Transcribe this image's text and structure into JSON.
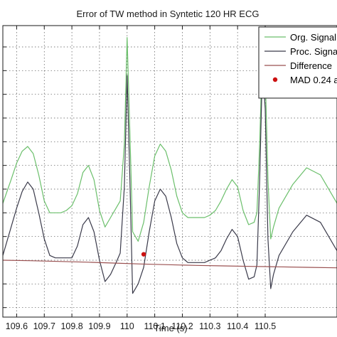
{
  "chart_data": {
    "type": "line",
    "title": "Error of TW method in Syntetic 120 HR ECG",
    "xlabel": "Time (s)",
    "ylabel": "",
    "xlim": [
      109.55,
      110.76
    ],
    "ylim": [
      -0.18,
      1.05
    ],
    "grid": true,
    "x_ticks": [
      109.6,
      109.7,
      109.8,
      109.9,
      110.0,
      110.1,
      110.2,
      110.3,
      110.4,
      110.5
    ],
    "x_tick_labels": [
      "109.6",
      "109.7",
      "109.8",
      "109.9",
      "110",
      "110.1",
      "110.2",
      "110.3",
      "110.4",
      "110.5"
    ],
    "y_ticks": [
      -0.14,
      -0.04,
      0.06,
      0.16,
      0.26,
      0.36,
      0.46,
      0.56,
      0.66,
      0.76,
      0.86,
      0.96
    ],
    "legend_position": "top-right",
    "colors": {
      "org": "#6bbf6b",
      "proc": "#3a3a4a",
      "diff": "#9a5050",
      "mad": "#cc1111"
    },
    "series": [
      {
        "name": "Org. Signal",
        "x": [
          109.55,
          109.58,
          109.6,
          109.62,
          109.64,
          109.66,
          109.68,
          109.7,
          109.72,
          109.74,
          109.76,
          109.78,
          109.8,
          109.82,
          109.84,
          109.86,
          109.88,
          109.9,
          109.92,
          109.94,
          109.96,
          109.975,
          109.99,
          110.0,
          110.01,
          110.02,
          110.04,
          110.06,
          110.08,
          110.1,
          110.12,
          110.14,
          110.16,
          110.18,
          110.2,
          110.22,
          110.24,
          110.26,
          110.28,
          110.3,
          110.32,
          110.34,
          110.36,
          110.38,
          110.4,
          110.42,
          110.44,
          110.46,
          110.47,
          110.48,
          110.49,
          110.5,
          110.51,
          110.52,
          110.53,
          110.55,
          110.6,
          110.65,
          110.7,
          110.76
        ],
        "y": [
          0.3,
          0.4,
          0.47,
          0.52,
          0.54,
          0.51,
          0.42,
          0.31,
          0.26,
          0.26,
          0.26,
          0.27,
          0.29,
          0.34,
          0.43,
          0.46,
          0.4,
          0.27,
          0.2,
          0.24,
          0.28,
          0.31,
          0.55,
          1.0,
          0.6,
          0.18,
          0.14,
          0.22,
          0.37,
          0.5,
          0.55,
          0.52,
          0.44,
          0.33,
          0.26,
          0.24,
          0.24,
          0.24,
          0.24,
          0.25,
          0.27,
          0.31,
          0.36,
          0.4,
          0.37,
          0.27,
          0.21,
          0.22,
          0.26,
          0.55,
          0.96,
          0.85,
          0.4,
          0.15,
          0.2,
          0.28,
          0.38,
          0.45,
          0.42,
          0.3
        ]
      },
      {
        "name": "Proc. Signal",
        "x": [
          109.55,
          109.58,
          109.6,
          109.62,
          109.64,
          109.66,
          109.68,
          109.7,
          109.72,
          109.74,
          109.76,
          109.78,
          109.8,
          109.82,
          109.84,
          109.86,
          109.88,
          109.9,
          109.92,
          109.94,
          109.96,
          109.975,
          109.99,
          110.0,
          110.01,
          110.02,
          110.04,
          110.06,
          110.08,
          110.1,
          110.12,
          110.14,
          110.16,
          110.18,
          110.2,
          110.22,
          110.24,
          110.26,
          110.28,
          110.3,
          110.32,
          110.34,
          110.36,
          110.38,
          110.4,
          110.42,
          110.44,
          110.46,
          110.47,
          110.48,
          110.49,
          110.5,
          110.51,
          110.52,
          110.53,
          110.55,
          110.6,
          110.65,
          110.7,
          110.76
        ],
        "y": [
          0.08,
          0.2,
          0.28,
          0.35,
          0.39,
          0.36,
          0.26,
          0.15,
          0.08,
          0.07,
          0.07,
          0.07,
          0.07,
          0.12,
          0.21,
          0.24,
          0.18,
          0.06,
          -0.03,
          0.0,
          0.05,
          0.09,
          0.37,
          0.84,
          0.4,
          -0.08,
          -0.04,
          0.03,
          0.18,
          0.31,
          0.36,
          0.33,
          0.24,
          0.13,
          0.07,
          0.05,
          0.05,
          0.05,
          0.05,
          0.06,
          0.07,
          0.1,
          0.15,
          0.19,
          0.16,
          0.06,
          -0.02,
          -0.01,
          0.04,
          0.4,
          0.88,
          0.7,
          0.15,
          -0.06,
          0.0,
          0.08,
          0.18,
          0.25,
          0.22,
          0.1
        ]
      },
      {
        "name": "Difference",
        "x": [
          109.55,
          109.65,
          109.75,
          109.85,
          109.95,
          110.05,
          110.15,
          110.25,
          110.35,
          110.45,
          110.55,
          110.65,
          110.76
        ],
        "y": [
          0.06,
          0.058,
          0.055,
          0.052,
          0.048,
          0.044,
          0.041,
          0.038,
          0.036,
          0.034,
          0.032,
          0.03,
          0.028
        ]
      }
    ],
    "points": [
      {
        "name": "MAD 0.24 a",
        "x": 110.06,
        "y": 0.085
      }
    ]
  }
}
